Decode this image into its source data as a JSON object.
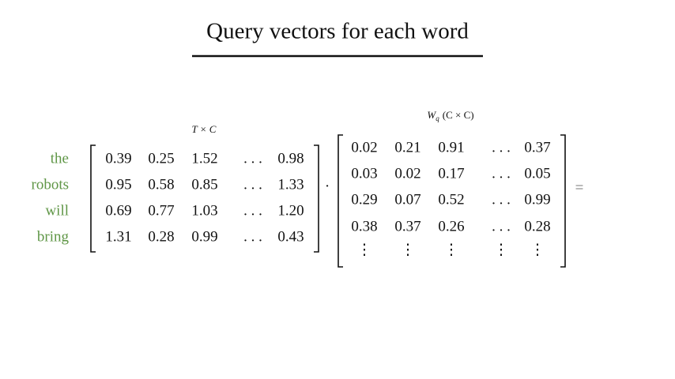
{
  "title": "Query vectors for each word",
  "words": [
    "the",
    "robots",
    "will",
    "bring"
  ],
  "matrix_a": {
    "label": "T × C",
    "rows": [
      [
        "0.39",
        "0.25",
        "1.52",
        ". . .",
        "0.98"
      ],
      [
        "0.95",
        "0.58",
        "0.85",
        ". . .",
        "1.33"
      ],
      [
        "0.69",
        "0.77",
        "1.03",
        ". . .",
        "1.20"
      ],
      [
        "1.31",
        "0.28",
        "0.99",
        ". . .",
        "0.43"
      ]
    ]
  },
  "operator": "·",
  "matrix_b": {
    "label": {
      "symbol": "W",
      "subscript": "q",
      "dims": "(C × C)"
    },
    "rows": [
      [
        "0.02",
        "0.21",
        "0.91",
        ". . .",
        "0.37"
      ],
      [
        "0.03",
        "0.02",
        "0.17",
        ". . .",
        "0.05"
      ],
      [
        "0.29",
        "0.07",
        "0.52",
        ". . .",
        "0.99"
      ],
      [
        "0.38",
        "0.37",
        "0.26",
        ". . .",
        "0.28"
      ],
      [
        "⋮",
        "⋮",
        "⋮",
        "⋮",
        "⋮"
      ]
    ]
  },
  "result": "="
}
